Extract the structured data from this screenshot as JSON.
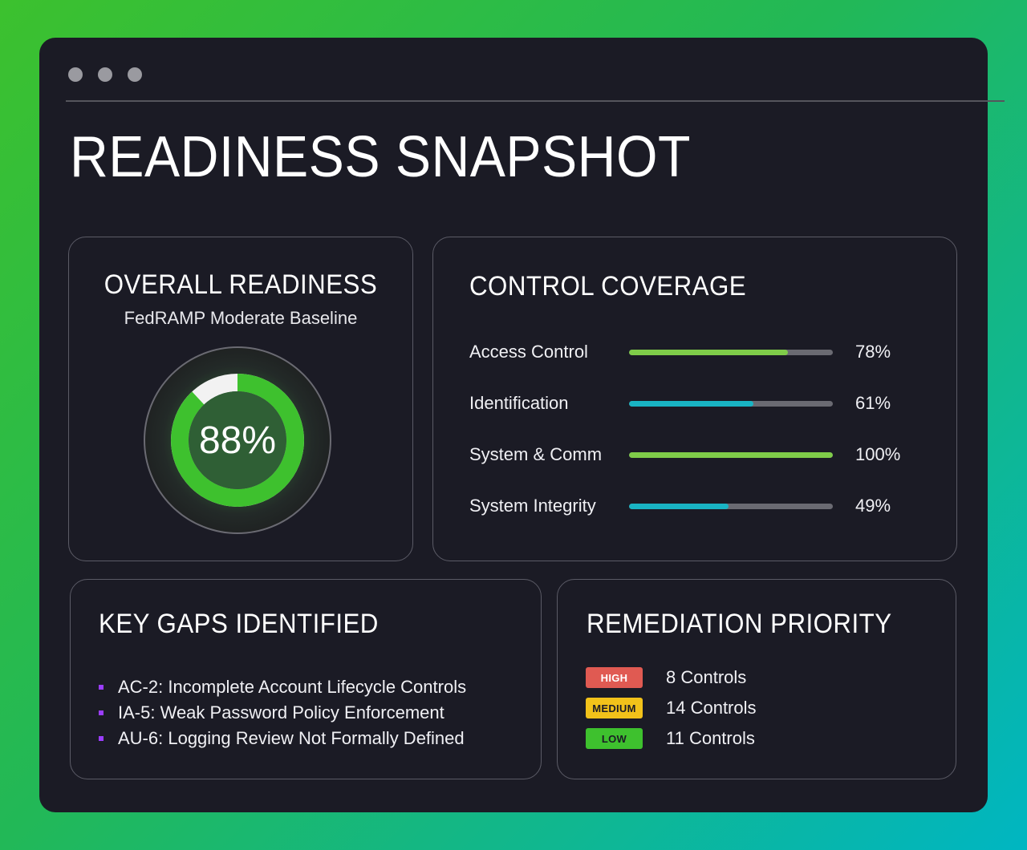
{
  "page": {
    "title": "READINESS SNAPSHOT"
  },
  "overall": {
    "title": "OVERALL READINESS",
    "subtitle": "FedRAMP Moderate Baseline",
    "value_text": "88%",
    "value": 88,
    "colors": {
      "ring": "#3ec12e",
      "remaining": "#f2f2f2",
      "inner": "#2f5f35"
    }
  },
  "coverage": {
    "title": "CONTROL COVERAGE",
    "items": [
      {
        "label": "Access Control",
        "value": 78,
        "value_text": "78%",
        "color": "#7fcc49"
      },
      {
        "label": "Identification",
        "value": 61,
        "value_text": "61%",
        "color": "#19b4c4"
      },
      {
        "label": "System & Comm",
        "value": 100,
        "value_text": "100%",
        "color": "#7fcc49"
      },
      {
        "label": "System Integrity",
        "value": 49,
        "value_text": "49%",
        "color": "#19b4c4"
      }
    ]
  },
  "gaps": {
    "title": "KEY GAPS IDENTIFIED",
    "items": [
      "AC-2: Incomplete Account Lifecycle Controls",
      "IA-5: Weak Password Policy Enforcement",
      "AU-6: Logging Review Not Formally Defined"
    ],
    "bullet_color": "#9b3dff"
  },
  "remediation": {
    "title": "REMEDIATION PRIORITY",
    "items": [
      {
        "level": "HIGH",
        "count": "8 Controls",
        "bg": "#e05a52",
        "fg": "#ffffff"
      },
      {
        "level": "MEDIUM",
        "count": "14 Controls",
        "bg": "#f2c21a",
        "fg": "#1b1b25"
      },
      {
        "level": "LOW",
        "count": "11 Controls",
        "bg": "#3ec12e",
        "fg": "#1b1b25"
      }
    ]
  }
}
